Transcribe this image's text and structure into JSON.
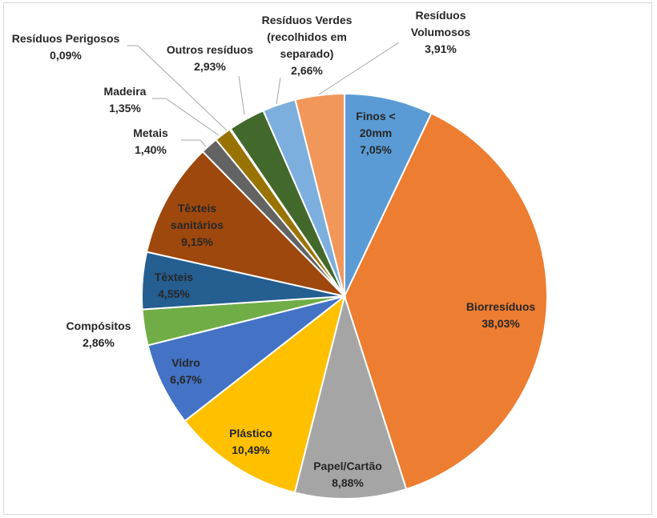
{
  "chart_data": {
    "type": "pie",
    "title": "",
    "start_angle_deg": 0,
    "direction": "clockwise",
    "slices": [
      {
        "name": "Finos < 20mm",
        "value": 7.05,
        "label": [
          "Finos <",
          "20mm",
          "7,05%"
        ],
        "color": "#5b9bd5",
        "label_pos": "inside",
        "text_color": "#262626"
      },
      {
        "name": "Biorresíduos",
        "value": 38.03,
        "label": [
          "Biorresíduos",
          "38,03%"
        ],
        "color": "#ed7d31",
        "label_pos": "inside",
        "text_color": "#262626"
      },
      {
        "name": "Papel/Cartão",
        "value": 8.88,
        "label": [
          "Papel/Cartão",
          "8,88%"
        ],
        "color": "#a5a5a5",
        "label_pos": "inside",
        "text_color": "#262626"
      },
      {
        "name": "Plástico",
        "value": 10.49,
        "label": [
          "Plástico",
          "10,49%"
        ],
        "color": "#ffc000",
        "label_pos": "inside",
        "text_color": "#262626"
      },
      {
        "name": "Vidro",
        "value": 6.67,
        "label": [
          "Vidro",
          "6,67%"
        ],
        "color": "#4472c4",
        "label_pos": "inside",
        "text_color": "#262626"
      },
      {
        "name": "Compósitos",
        "value": 2.86,
        "label": [
          "Compósitos",
          "2,86%"
        ],
        "color": "#70ad47",
        "label_pos": "outside",
        "text_color": "#262626"
      },
      {
        "name": "Têxteis",
        "value": 4.55,
        "label": [
          "Têxteis",
          "4,55%"
        ],
        "color": "#255e91",
        "label_pos": "inside",
        "text_color": "#262626"
      },
      {
        "name": "Têxteis sanitários",
        "value": 9.15,
        "label": [
          "Têxteis",
          "sanitários",
          "9,15%"
        ],
        "color": "#9e480e",
        "label_pos": "inside",
        "text_color": "#262626"
      },
      {
        "name": "Metais",
        "value": 1.4,
        "label": [
          "Metais",
          "1,40%"
        ],
        "color": "#636363",
        "label_pos": "outside",
        "text_color": "#262626"
      },
      {
        "name": "Madeira",
        "value": 1.35,
        "label": [
          "Madeira",
          "1,35%"
        ],
        "color": "#997300",
        "label_pos": "outside",
        "text_color": "#262626"
      },
      {
        "name": "Resíduos Perigosos",
        "value": 0.09,
        "label": [
          "Resíduos Perigosos",
          "0,09%"
        ],
        "color": "#264478",
        "label_pos": "outside",
        "text_color": "#262626"
      },
      {
        "name": "Outros resíduos",
        "value": 2.93,
        "label": [
          "Outros resíduos",
          "2,93%"
        ],
        "color": "#43682b",
        "label_pos": "outside",
        "text_color": "#262626"
      },
      {
        "name": "Resíduos Verdes (recolhidos em separado)",
        "value": 2.66,
        "label": [
          "Resíduos Verdes",
          "(recolhidos em",
          "separado)",
          "2,66%"
        ],
        "color": "#7cafdd",
        "label_pos": "outside",
        "text_color": "#262626"
      },
      {
        "name": "Resíduos Volumosos",
        "value": 3.91,
        "label": [
          "Resíduos",
          "Volumosos",
          "3,91%"
        ],
        "color": "#f1975a",
        "label_pos": "outside",
        "text_color": "#262626"
      }
    ]
  }
}
